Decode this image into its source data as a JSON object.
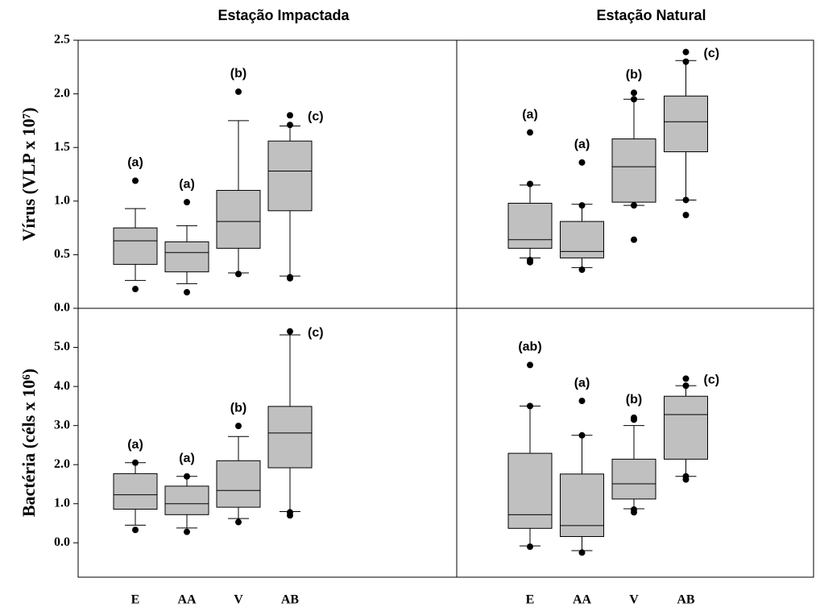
{
  "chart_data": [
    {
      "type": "box",
      "title": "Estação Impactada",
      "y_label": "Vírus (VLP x 10⁷)",
      "box_color": "#c0c0c0",
      "ylim": [
        0,
        2.5
      ],
      "yticks": [
        {
          "value": 0,
          "label": "0.0"
        },
        {
          "value": 0.5,
          "label": "0.5"
        },
        {
          "value": 1,
          "label": "1.0"
        },
        {
          "value": 1.5,
          "label": "1.5"
        },
        {
          "value": 2,
          "label": "2.0"
        },
        {
          "value": 2.5,
          "label": "2.5"
        }
      ],
      "boxes": [
        {
          "low": 0.26,
          "q1": 0.41,
          "median": 0.63,
          "q3": 0.75,
          "high": 0.93,
          "outliers": [
            1.19,
            0.18
          ],
          "label": "(a)"
        },
        {
          "low": 0.23,
          "q1": 0.34,
          "median": 0.52,
          "q3": 0.62,
          "high": 0.77,
          "outliers": [
            0.99,
            0.15
          ],
          "label": "(a)"
        },
        {
          "low": 0.33,
          "q1": 0.56,
          "median": 0.81,
          "q3": 1.1,
          "high": 1.75,
          "outliers": [
            2.02,
            0.32
          ],
          "label": "(b)"
        },
        {
          "low": 0.3,
          "q1": 0.91,
          "median": 1.28,
          "q3": 1.56,
          "high": 1.7,
          "outliers": [
            1.8,
            1.71,
            0.29,
            0.28
          ],
          "label": "(c)"
        }
      ]
    },
    {
      "type": "box",
      "title": "Estação Natural",
      "box_color": "#c0c0c0",
      "ylim": [
        0,
        2.5
      ],
      "boxes": [
        {
          "low": 0.47,
          "q1": 0.56,
          "median": 0.64,
          "q3": 0.98,
          "high": 1.15,
          "outliers": [
            1.64,
            1.16,
            0.45,
            0.43
          ],
          "label": "(a)"
        },
        {
          "low": 0.38,
          "q1": 0.47,
          "median": 0.53,
          "q3": 0.81,
          "high": 0.97,
          "outliers": [
            1.36,
            0.96,
            0.36
          ],
          "label": "(a)"
        },
        {
          "low": 0.96,
          "q1": 0.99,
          "median": 1.32,
          "q3": 1.58,
          "high": 1.95,
          "outliers": [
            2.01,
            1.95,
            0.96,
            0.64
          ],
          "label": "(b)"
        },
        {
          "low": 1.01,
          "q1": 1.46,
          "median": 1.74,
          "q3": 1.98,
          "high": 2.31,
          "outliers": [
            2.39,
            2.3,
            1.01,
            0.87
          ],
          "label": "(c)"
        }
      ]
    },
    {
      "type": "box",
      "y_label": "Bactéria (céls x 10⁶)",
      "box_color": "#c0c0c0",
      "categories": [
        "E",
        "AA",
        "V",
        "AB"
      ],
      "ylim": [
        -0.88,
        6.0
      ],
      "yticks": [
        {
          "value": 0,
          "label": "0.0"
        },
        {
          "value": 1,
          "label": "1.0"
        },
        {
          "value": 2,
          "label": "2.0"
        },
        {
          "value": 3,
          "label": "3.0"
        },
        {
          "value": 4,
          "label": "4.0"
        },
        {
          "value": 5,
          "label": "5.0"
        }
      ],
      "boxes": [
        {
          "low": 0.45,
          "q1": 0.86,
          "median": 1.23,
          "q3": 1.77,
          "high": 2.05,
          "outliers": [
            2.05,
            0.33
          ],
          "label": "(a)"
        },
        {
          "low": 0.38,
          "q1": 0.72,
          "median": 1.0,
          "q3": 1.45,
          "high": 1.7,
          "outliers": [
            1.7,
            0.28
          ],
          "label": "(a)"
        },
        {
          "low": 0.62,
          "q1": 0.91,
          "median": 1.34,
          "q3": 2.1,
          "high": 2.72,
          "outliers": [
            2.99,
            0.53
          ],
          "label": "(b)"
        },
        {
          "low": 0.8,
          "q1": 1.92,
          "median": 2.81,
          "q3": 3.49,
          "high": 5.32,
          "outliers": [
            5.41,
            0.78,
            0.7
          ],
          "label": "(c)"
        }
      ]
    },
    {
      "type": "box",
      "box_color": "#c0c0c0",
      "categories": [
        "E",
        "AA",
        "V",
        "AB"
      ],
      "ylim": [
        -0.88,
        6.0
      ],
      "boxes": [
        {
          "low": -0.08,
          "q1": 0.37,
          "median": 0.72,
          "q3": 2.29,
          "high": 3.5,
          "outliers": [
            4.55,
            3.5,
            -0.1
          ],
          "label": "(ab)"
        },
        {
          "low": -0.2,
          "q1": 0.16,
          "median": 0.44,
          "q3": 1.76,
          "high": 2.75,
          "outliers": [
            3.63,
            2.75,
            -0.25
          ],
          "label": "(a)"
        },
        {
          "low": 0.87,
          "q1": 1.12,
          "median": 1.51,
          "q3": 2.14,
          "high": 3.0,
          "outliers": [
            3.2,
            3.15,
            0.85,
            0.78
          ],
          "label": "(b)"
        },
        {
          "low": 1.7,
          "q1": 2.14,
          "median": 3.28,
          "q3": 3.75,
          "high": 4.02,
          "outliers": [
            4.2,
            4.02,
            1.7,
            1.62
          ],
          "label": "(c)"
        }
      ]
    }
  ]
}
